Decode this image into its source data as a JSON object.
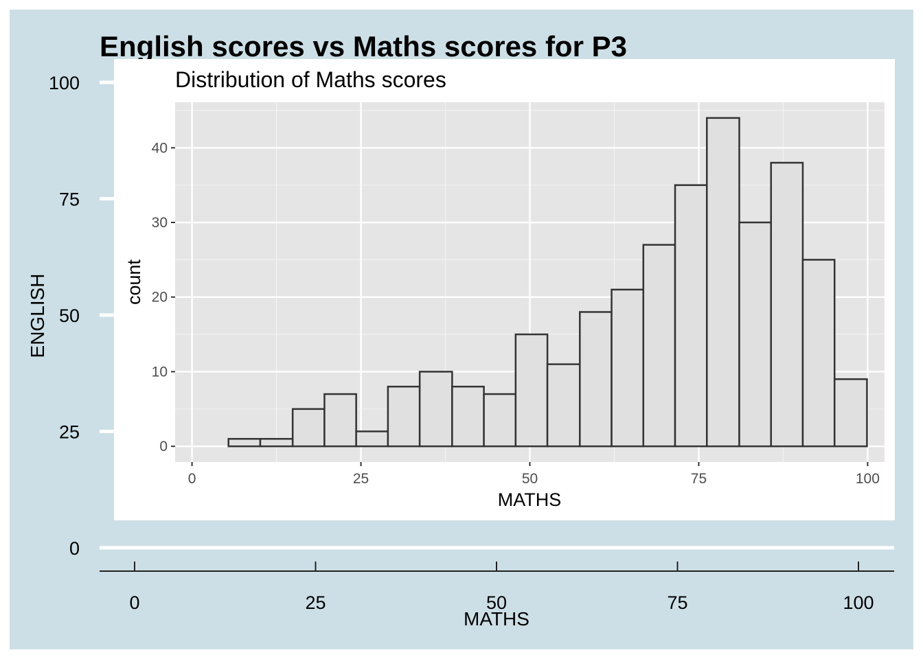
{
  "outer_chart": {
    "title": "English scores vs Maths scores for P3",
    "xlabel": "MATHS",
    "ylabel": "ENGLISH",
    "x_ticks": [
      0,
      25,
      50,
      75,
      100
    ],
    "y_ticks": [
      0,
      25,
      50,
      75,
      100
    ],
    "xlim": [
      -5,
      105
    ],
    "ylim": [
      -5,
      105
    ],
    "background": "#cddfe6",
    "border": "#ffffff"
  },
  "chart_data": {
    "type": "bar",
    "title": "Distribution of Maths scores",
    "xlabel": "MATHS",
    "ylabel": "count",
    "bin_edges": [
      5.4,
      10.1,
      14.9,
      19.6,
      24.3,
      29.0,
      33.7,
      38.5,
      43.2,
      47.9,
      52.6,
      57.4,
      62.1,
      66.8,
      71.5,
      76.2,
      81.0,
      85.7,
      90.4,
      95.1,
      99.9
    ],
    "values": [
      1,
      1,
      5,
      7,
      2,
      8,
      10,
      8,
      7,
      15,
      11,
      18,
      21,
      27,
      35,
      44,
      30,
      38,
      25,
      9
    ],
    "x_ticks": [
      0,
      25,
      50,
      75,
      100
    ],
    "y_ticks": [
      0,
      10,
      20,
      30,
      40
    ],
    "xlim": [
      -2.5,
      102.5
    ],
    "ylim": [
      -2.1,
      46.1
    ],
    "grid": true,
    "bar_fill": "#e0e0e0",
    "bar_stroke": "#333333",
    "panel_background": "#e5e5e5"
  }
}
